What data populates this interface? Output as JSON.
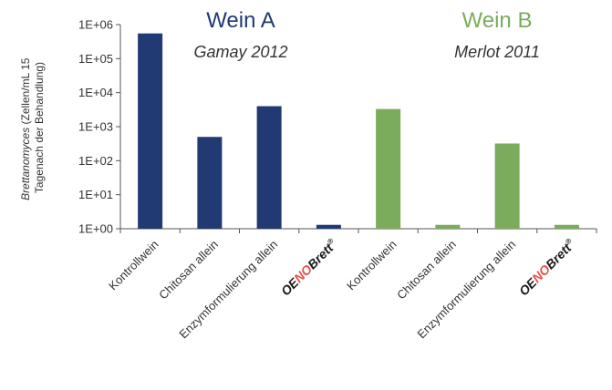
{
  "colors": {
    "wein_a": "#213a73",
    "wein_b": "#7aac5c",
    "brand_red": "#e4514f",
    "brand_dark": "#1a1a1a",
    "axis": "#555555"
  },
  "y_axis": {
    "label_italic": "Brettanomyces",
    "label_rest": " (Zellen/mL 15",
    "label_line2": "Tagenach der Behandlung)",
    "ticks": [
      "1E+00",
      "1E+01",
      "1E+02",
      "1E+03",
      "1E+04",
      "1E+05",
      "1E+06"
    ]
  },
  "groups": [
    {
      "title": "Wein A",
      "subtitle": "Gamay 2012"
    },
    {
      "title": "Wein B",
      "subtitle": "Merlot 2011"
    }
  ],
  "brand": {
    "part1": "OE",
    "part2": "NO",
    "part3": "Brett",
    "mark": "®"
  },
  "chart_data": {
    "type": "bar",
    "y_scale": "log",
    "ylim": [
      1,
      1000000
    ],
    "grid": false,
    "categories": [
      "Kontrollwein",
      "Chitosan allein",
      "Enzymformulierung allein",
      "OENOBrett®",
      "Kontrollwein",
      "Chitosan allein",
      "Enzymformulierung allein",
      "OENOBrett®"
    ],
    "series": [
      {
        "name": "Wein A",
        "values": [
          550000,
          500,
          4000,
          1.3,
          null,
          null,
          null,
          null
        ]
      },
      {
        "name": "Wein B",
        "values": [
          null,
          null,
          null,
          null,
          3300,
          1.3,
          320,
          1.3
        ]
      }
    ]
  }
}
